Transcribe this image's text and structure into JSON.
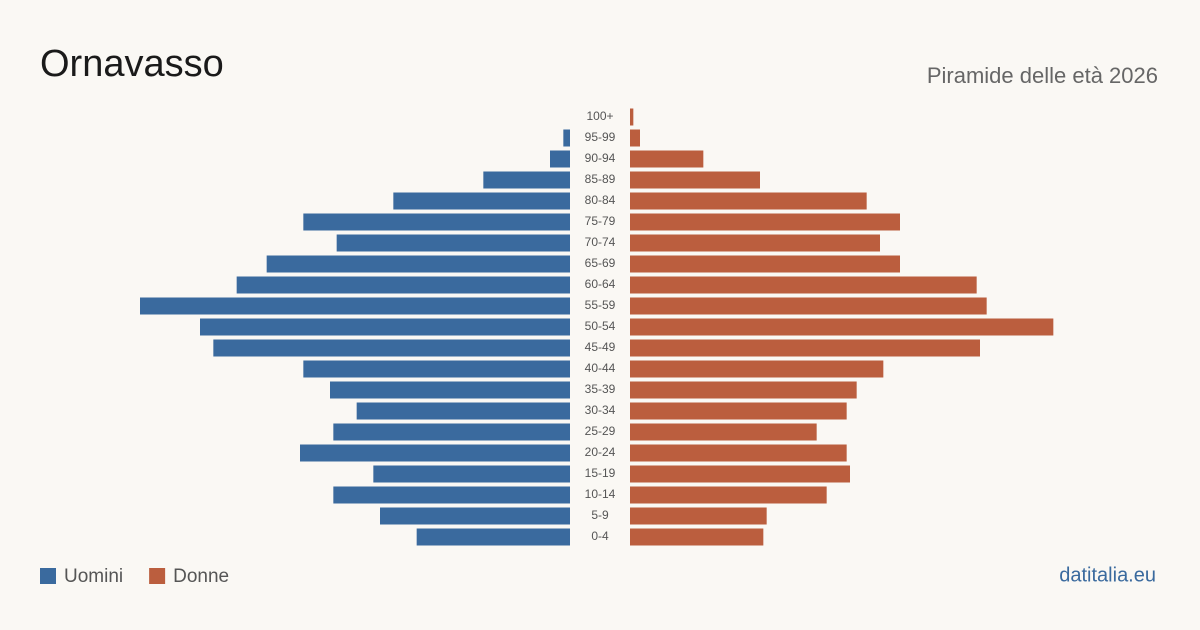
{
  "chart_data": {
    "type": "pyramid",
    "title": "Ornavasso",
    "subtitle": "Piramide delle età 2026",
    "categories": [
      "100+",
      "95-99",
      "90-94",
      "85-89",
      "80-84",
      "75-79",
      "70-74",
      "65-69",
      "60-64",
      "55-59",
      "50-54",
      "45-49",
      "40-44",
      "35-39",
      "30-34",
      "25-29",
      "20-24",
      "15-19",
      "10-14",
      "5-9",
      "0-4"
    ],
    "series": [
      {
        "name": "Uomini",
        "color": "#3a6a9e",
        "values": [
          0,
          2,
          6,
          26,
          53,
          80,
          70,
          91,
          100,
          129,
          111,
          107,
          80,
          72,
          64,
          71,
          81,
          59,
          71,
          57,
          46
        ]
      },
      {
        "name": "Donne",
        "color": "#bb5e3e",
        "values": [
          1,
          3,
          22,
          39,
          71,
          81,
          75,
          81,
          104,
          107,
          127,
          105,
          76,
          68,
          65,
          56,
          65,
          66,
          59,
          41,
          40
        ]
      }
    ],
    "source": "datitalia.eu"
  }
}
